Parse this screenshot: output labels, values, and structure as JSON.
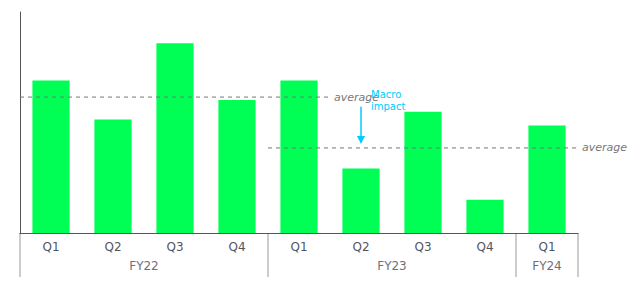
{
  "chart_data": {
    "type": "bar",
    "categories": [
      "Q1",
      "Q2",
      "Q3",
      "Q4",
      "Q1",
      "Q2",
      "Q3",
      "Q4",
      "Q1"
    ],
    "category_groups": [
      "FY22",
      "FY22",
      "FY22",
      "FY22",
      "FY23",
      "FY23",
      "FY23",
      "FY23",
      "FY24"
    ],
    "values": [
      0.78,
      0.58,
      0.97,
      0.68,
      0.78,
      0.33,
      0.62,
      0.17,
      0.55
    ],
    "color": "#00ff55",
    "ylim": [
      0,
      1.13
    ],
    "tick_labels": "x",
    "grid": false,
    "reference_lines": [
      {
        "value": 0.695,
        "label": "average",
        "from": {
          "group": "FY22",
          "category": "Q1"
        },
        "to": {
          "group": "FY23",
          "category": "Q1"
        }
      },
      {
        "value": 0.435,
        "label": "average",
        "from": {
          "group": "FY23",
          "category": "Q1"
        },
        "to": {
          "group": "FY24",
          "category": "Q1"
        }
      }
    ],
    "annotations": [
      {
        "text": "Macro\nimpact",
        "group": "FY23",
        "category": "Q2",
        "y": 0.74,
        "arrow": [
          0.645,
          0.455
        ],
        "color": "#00ccff"
      }
    ]
  }
}
